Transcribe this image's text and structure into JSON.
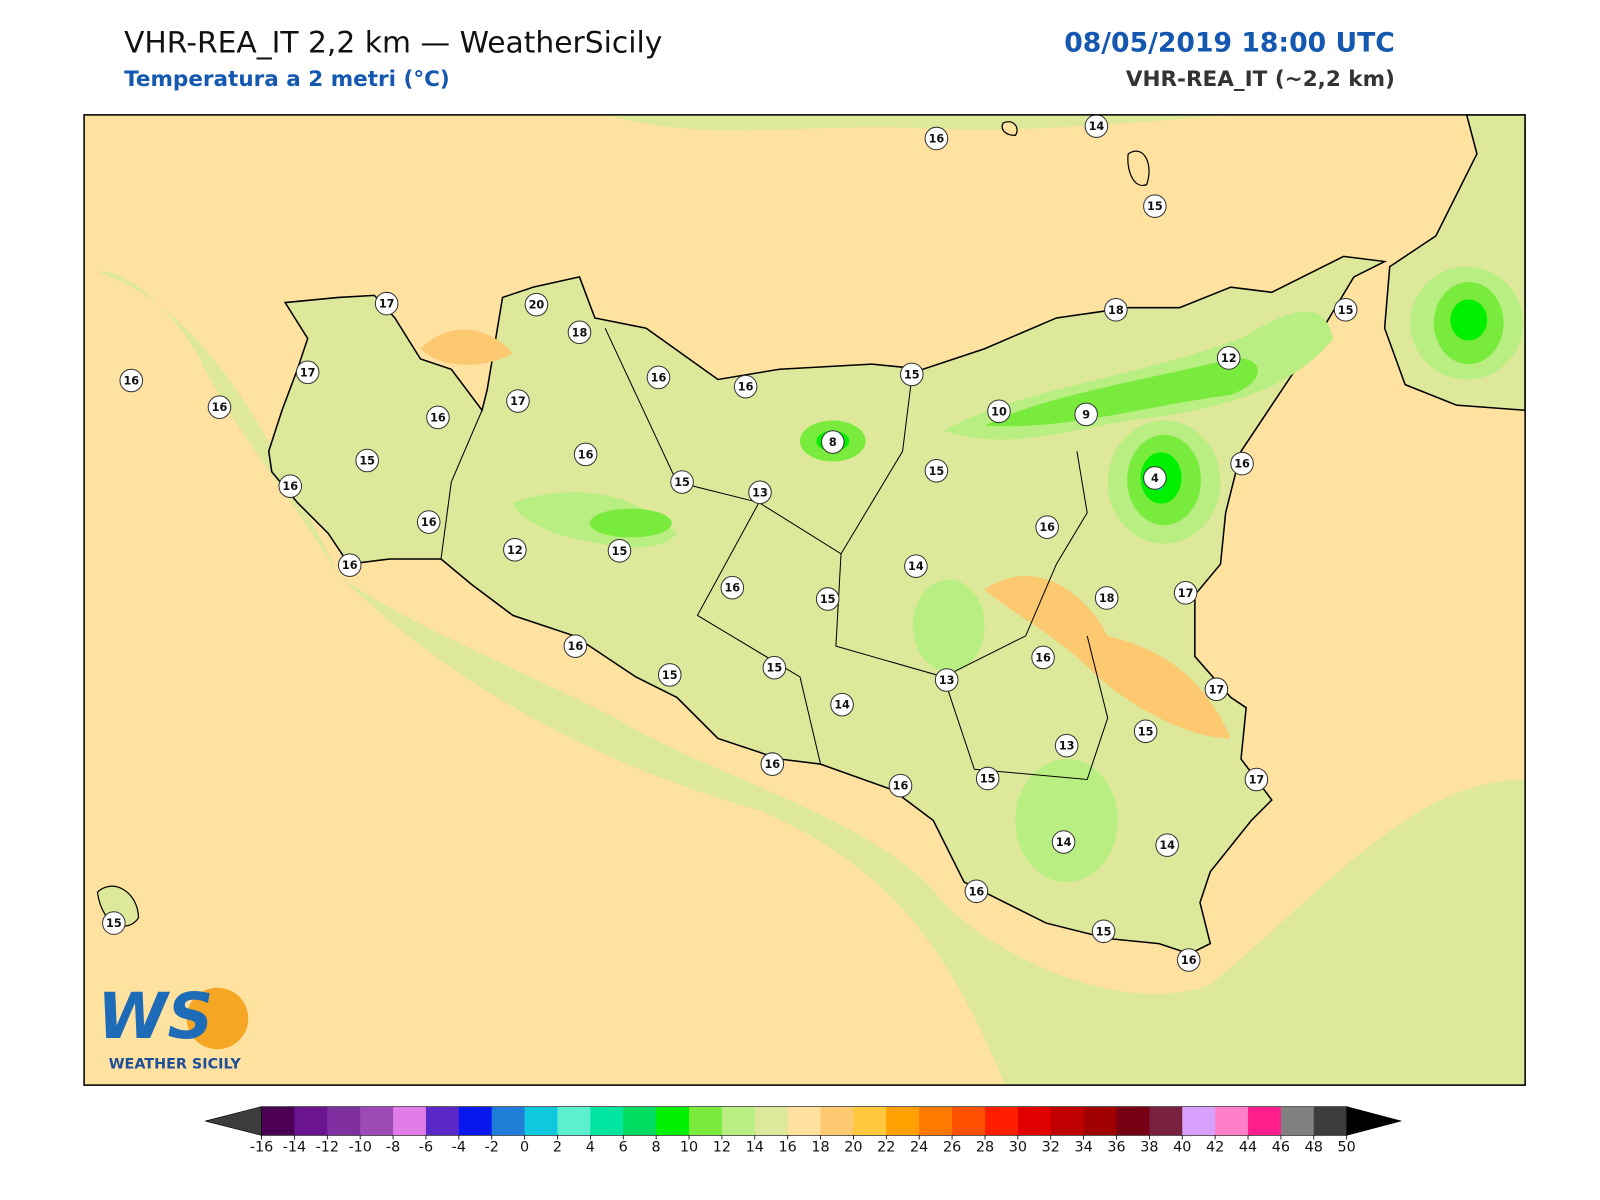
{
  "header": {
    "title": "VHR-REA_IT 2,2 km — WeatherSicily",
    "subtitle": "Temperatura a 2 metri (°C)",
    "datetime": "08/05/2019 18:00 UTC",
    "model": "VHR-REA_IT (~2,2 km)"
  },
  "stations": [
    16,
    14,
    15,
    17,
    20,
    18,
    18,
    15,
    16,
    17,
    16,
    16,
    16,
    15,
    12,
    17,
    16,
    10,
    9,
    8,
    16,
    15,
    16,
    15,
    4,
    16,
    15,
    13,
    16,
    16,
    12,
    15,
    16,
    14,
    16,
    15,
    18,
    17,
    16,
    16,
    15,
    15,
    13,
    17,
    14,
    15,
    13,
    16,
    16,
    15,
    17,
    14,
    14,
    16,
    15,
    15,
    16
  ],
  "colorbar": {
    "ticks": [
      -16,
      -14,
      -12,
      -10,
      -8,
      -6,
      -4,
      -2,
      0,
      2,
      4,
      6,
      8,
      10,
      12,
      14,
      16,
      18,
      20,
      22,
      24,
      26,
      28,
      30,
      32,
      34,
      36,
      38,
      40,
      42,
      44,
      46,
      48,
      50
    ],
    "colors": [
      "#4b0055",
      "#6a1490",
      "#7f2fa0",
      "#9b4ab6",
      "#e07be8",
      "#5a28c8",
      "#0a18f0",
      "#1f7fd8",
      "#0fc8e0",
      "#5cefd0",
      "#00e5a0",
      "#00dc60",
      "#00f000",
      "#78eb3c",
      "#b9ee82",
      "#dde89a",
      "#ffe09e",
      "#fcc870",
      "#ffc83c",
      "#ffa000",
      "#ff7800",
      "#ff5000",
      "#ff1e00",
      "#e10000",
      "#c00000",
      "#a00000",
      "#780014",
      "#7a2040",
      "#d8a0ff",
      "#ff80c8",
      "#ff1e8c",
      "#808080",
      "#3c3c3c"
    ],
    "under_color": "#3c3c3c",
    "over_color": "#000000"
  },
  "logo": {
    "mark": "WS",
    "name": "WEATHER SICILY"
  }
}
